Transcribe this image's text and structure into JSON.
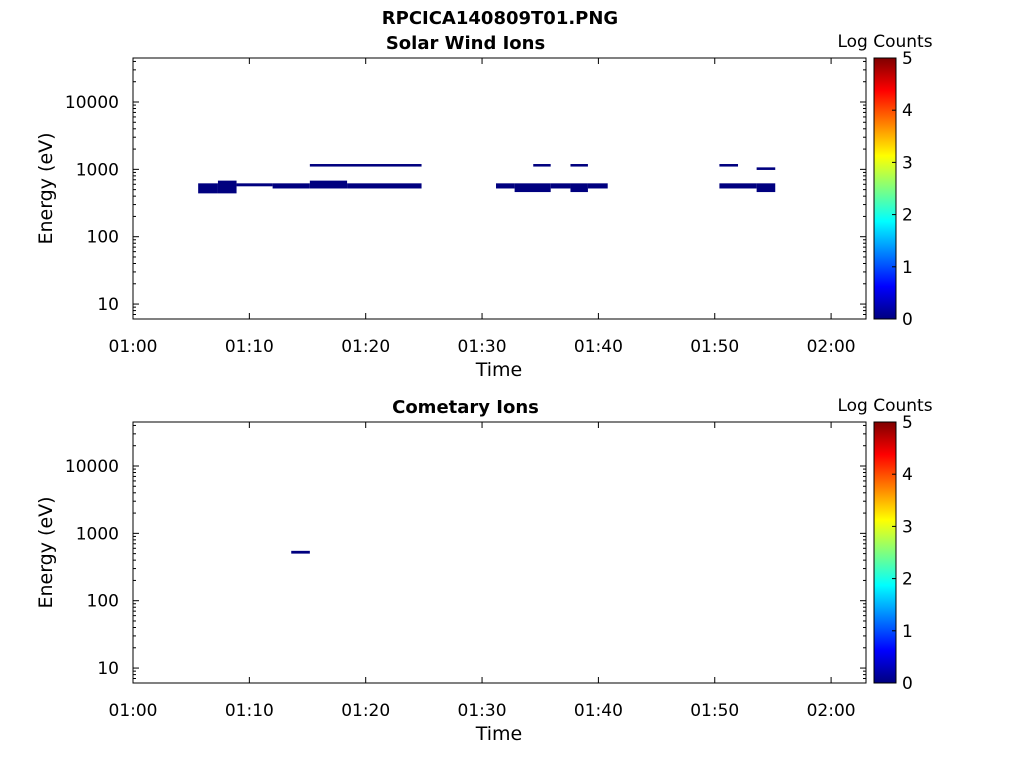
{
  "figure_title": "RPCICA140809T01.PNG",
  "chart_data": [
    {
      "type": "heatmap",
      "title": "Solar Wind Ions",
      "xlabel": "Time",
      "ylabel": "Energy (eV)",
      "x_ticks": [
        "01:00",
        "01:10",
        "01:20",
        "01:30",
        "01:40",
        "01:50",
        "02:00"
      ],
      "xlim_minutes": [
        60,
        123
      ],
      "y_scale": "log",
      "y_ticks": [
        "10",
        "100",
        "1000",
        "10000"
      ],
      "ylim": [
        6,
        45000
      ],
      "colorbar": {
        "label": "Log Counts",
        "range": [
          0,
          5
        ],
        "ticks": [
          "0",
          "1",
          "2",
          "3",
          "4",
          "5"
        ]
      },
      "grid": false,
      "cells": [
        {
          "t0": 65.6,
          "t1": 67.3,
          "e_lo": 440,
          "e_hi": 620,
          "log_counts": 0
        },
        {
          "t0": 67.3,
          "t1": 68.9,
          "e_lo": 440,
          "e_hi": 680,
          "log_counts": 0
        },
        {
          "t0": 68.9,
          "t1": 72.0,
          "e_lo": 560,
          "e_hi": 620,
          "log_counts": 0
        },
        {
          "t0": 72.0,
          "t1": 75.2,
          "e_lo": 520,
          "e_hi": 620,
          "log_counts": 0
        },
        {
          "t0": 75.2,
          "t1": 78.4,
          "e_lo": 520,
          "e_hi": 680,
          "log_counts": 0
        },
        {
          "t0": 78.4,
          "t1": 84.8,
          "e_lo": 520,
          "e_hi": 620,
          "log_counts": 0
        },
        {
          "t0": 75.2,
          "t1": 84.8,
          "e_lo": 1100,
          "e_hi": 1200,
          "log_counts": 0
        },
        {
          "t0": 91.2,
          "t1": 92.8,
          "e_lo": 520,
          "e_hi": 620,
          "log_counts": 0
        },
        {
          "t0": 92.8,
          "t1": 95.9,
          "e_lo": 460,
          "e_hi": 620,
          "log_counts": 0
        },
        {
          "t0": 95.9,
          "t1": 97.6,
          "e_lo": 520,
          "e_hi": 620,
          "log_counts": 0
        },
        {
          "t0": 97.6,
          "t1": 99.1,
          "e_lo": 460,
          "e_hi": 620,
          "log_counts": 0
        },
        {
          "t0": 99.1,
          "t1": 100.8,
          "e_lo": 520,
          "e_hi": 620,
          "log_counts": 0
        },
        {
          "t0": 94.4,
          "t1": 95.9,
          "e_lo": 1100,
          "e_hi": 1200,
          "log_counts": 0
        },
        {
          "t0": 97.6,
          "t1": 99.1,
          "e_lo": 1100,
          "e_hi": 1200,
          "log_counts": 0
        },
        {
          "t0": 110.4,
          "t1": 113.6,
          "e_lo": 520,
          "e_hi": 620,
          "log_counts": 0
        },
        {
          "t0": 113.6,
          "t1": 115.2,
          "e_lo": 460,
          "e_hi": 620,
          "log_counts": 0
        },
        {
          "t0": 110.4,
          "t1": 112.0,
          "e_lo": 1100,
          "e_hi": 1200,
          "log_counts": 0
        },
        {
          "t0": 113.6,
          "t1": 115.2,
          "e_lo": 980,
          "e_hi": 1070,
          "log_counts": 0
        }
      ]
    },
    {
      "type": "heatmap",
      "title": "Cometary Ions",
      "xlabel": "Time",
      "ylabel": "Energy (eV)",
      "x_ticks": [
        "01:00",
        "01:10",
        "01:20",
        "01:30",
        "01:40",
        "01:50",
        "02:00"
      ],
      "xlim_minutes": [
        60,
        123
      ],
      "y_scale": "log",
      "y_ticks": [
        "10",
        "100",
        "1000",
        "10000"
      ],
      "ylim": [
        6,
        45000
      ],
      "colorbar": {
        "label": "Log Counts",
        "range": [
          0,
          5
        ],
        "ticks": [
          "0",
          "1",
          "2",
          "3",
          "4",
          "5"
        ]
      },
      "grid": false,
      "cells": [
        {
          "t0": 73.6,
          "t1": 75.2,
          "e_lo": 500,
          "e_hi": 550,
          "log_counts": 0
        }
      ]
    }
  ],
  "jet_colormap": [
    "#00007f",
    "#0000ff",
    "#007fff",
    "#00ffff",
    "#7fff7f",
    "#ffff00",
    "#ff7f00",
    "#ff0000",
    "#7f0000"
  ]
}
